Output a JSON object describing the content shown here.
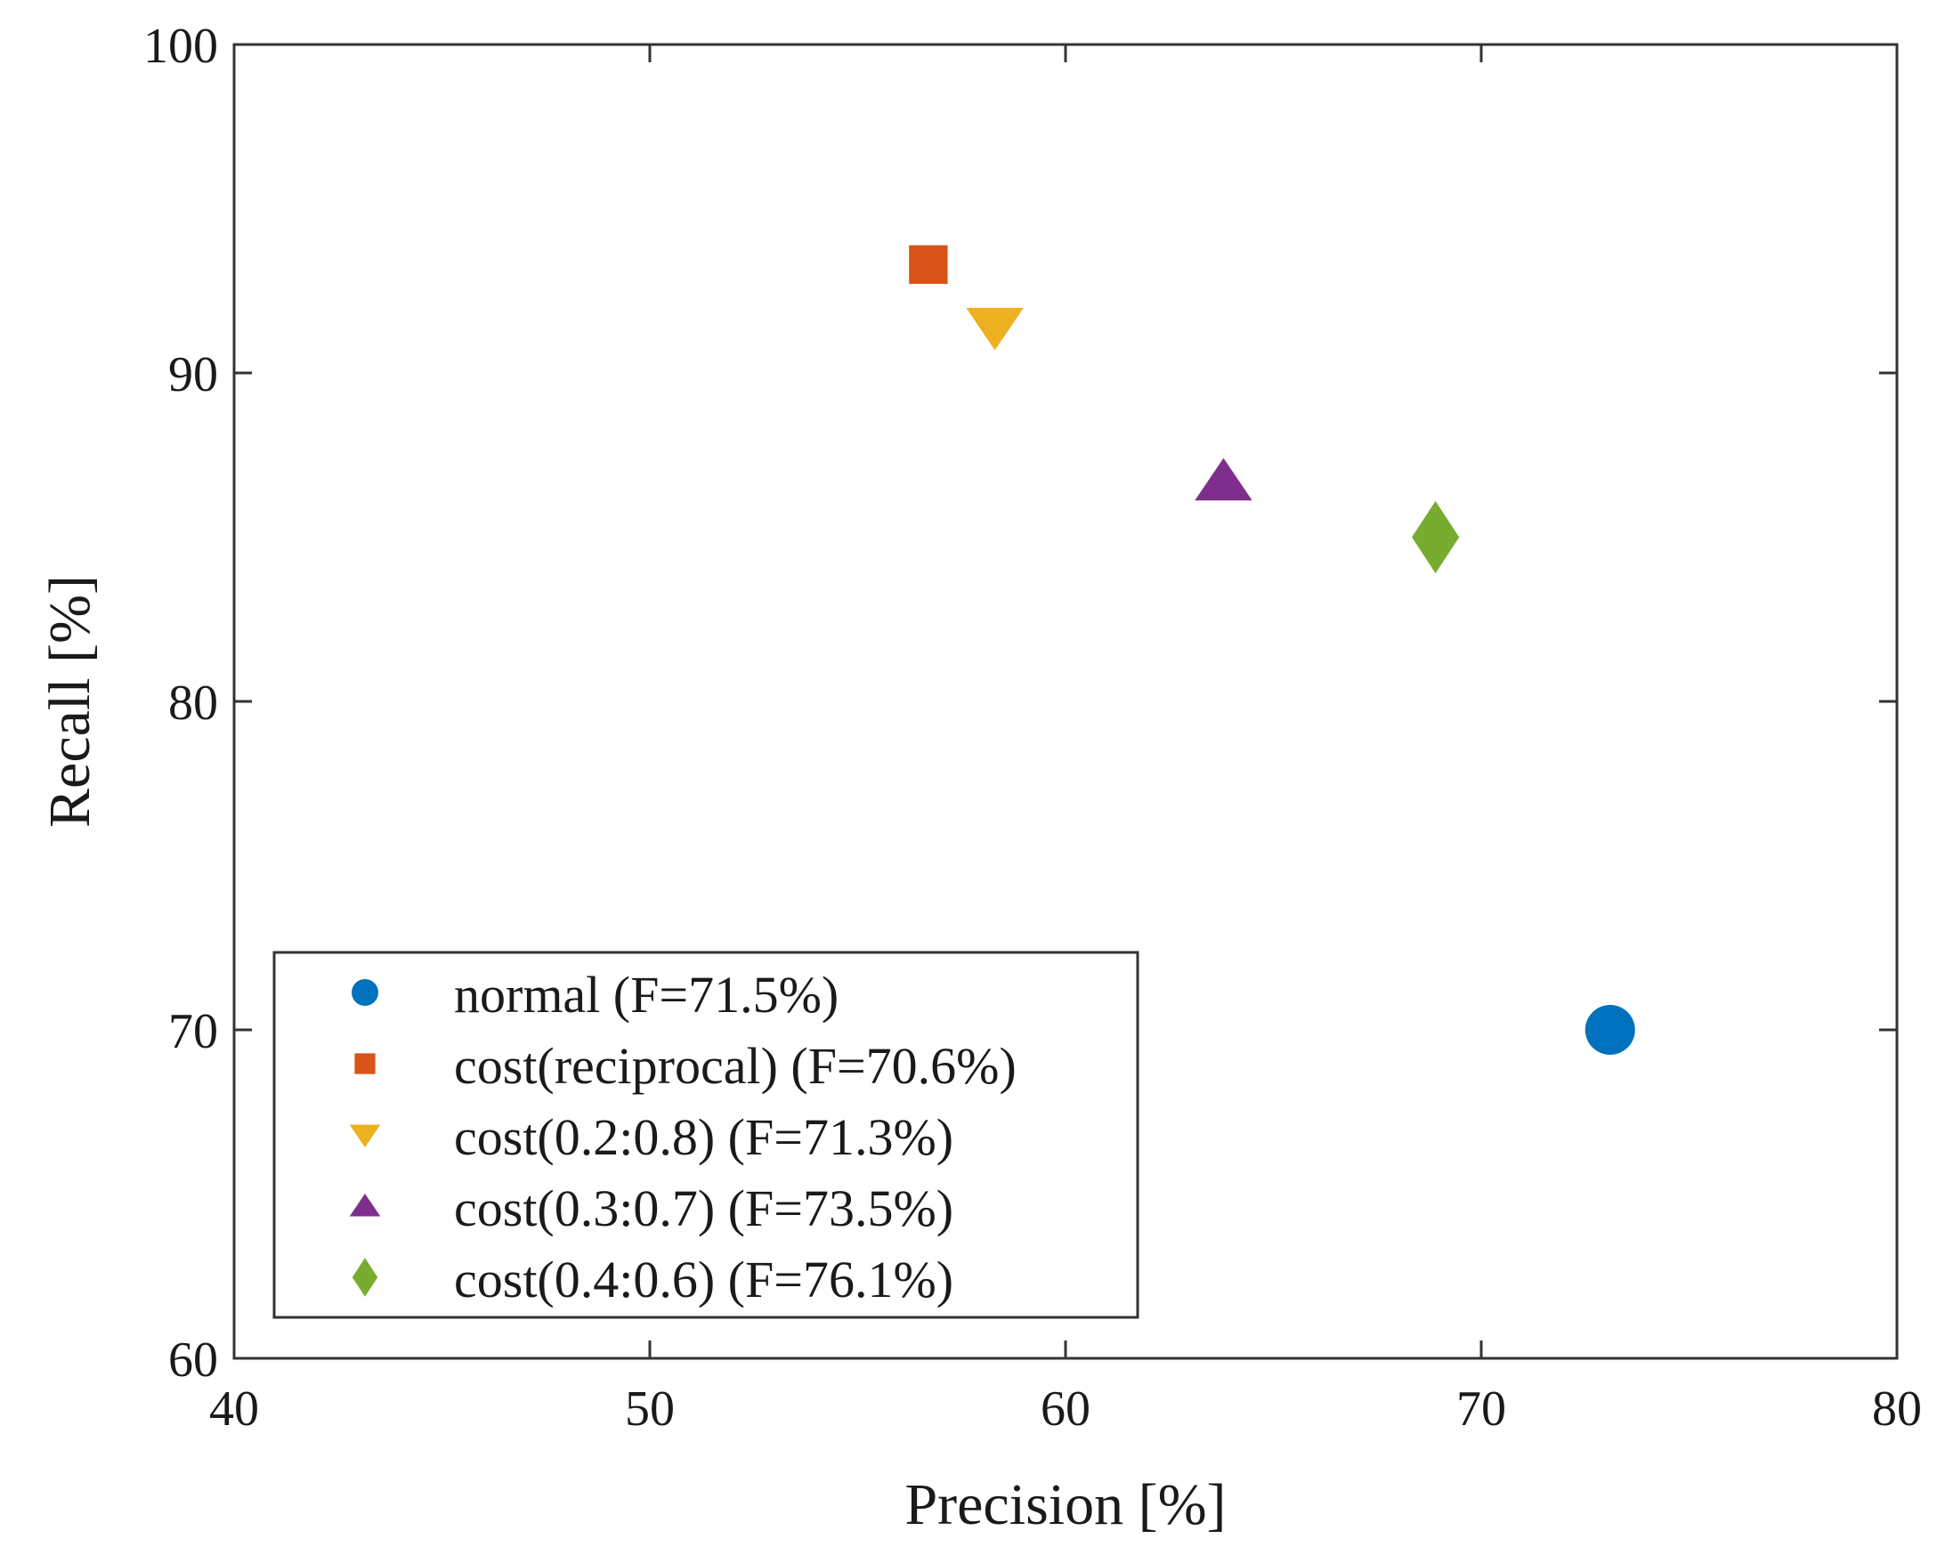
{
  "chart_data": {
    "type": "scatter",
    "title": "",
    "xlabel": "Precision [%]",
    "ylabel": "Recall [%]",
    "xlim": [
      40,
      80
    ],
    "ylim": [
      60,
      100
    ],
    "xticks": [
      40,
      50,
      60,
      70,
      80
    ],
    "yticks": [
      60,
      70,
      80,
      90,
      100
    ],
    "grid": false,
    "legend_position": "bottom-left",
    "series": [
      {
        "name": "normal (F=71.5%)",
        "marker": "circle",
        "color": "#0072BD",
        "x": 73.1,
        "y": 70.0
      },
      {
        "name": "cost(reciprocal) (F=70.6%)",
        "marker": "square",
        "color": "#D95319",
        "x": 56.7,
        "y": 93.3
      },
      {
        "name": "cost(0.2:0.8) (F=71.3%)",
        "marker": "triangle-down",
        "color": "#EDB120",
        "x": 58.3,
        "y": 91.4
      },
      {
        "name": "cost(0.3:0.7) (F=73.5%)",
        "marker": "triangle-up",
        "color": "#7E2F8E",
        "x": 63.8,
        "y": 86.7
      },
      {
        "name": "cost(0.4:0.6) (F=76.1%)",
        "marker": "diamond",
        "color": "#77AC30",
        "x": 68.9,
        "y": 85.0
      }
    ]
  }
}
